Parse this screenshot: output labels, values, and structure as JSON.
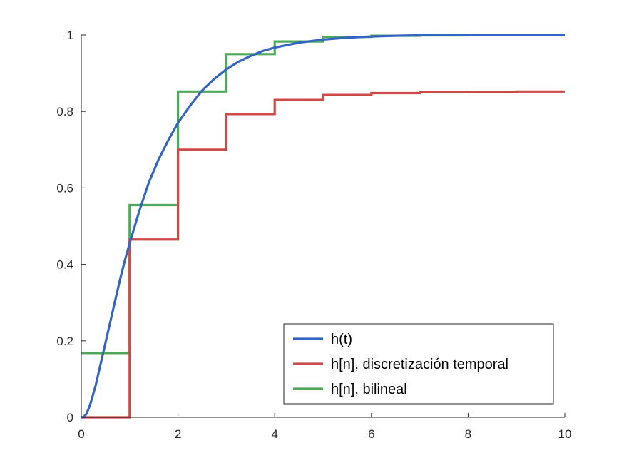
{
  "chart_data": {
    "type": "line",
    "title": "",
    "xlabel": "",
    "ylabel": "",
    "xlim": [
      0,
      10
    ],
    "ylim": [
      0,
      1
    ],
    "x_ticks": [
      0,
      2,
      4,
      6,
      8,
      10
    ],
    "y_ticks": [
      0,
      0.2,
      0.4,
      0.6,
      0.8,
      1
    ],
    "x_tick_labels": [
      "0",
      "2",
      "4",
      "6",
      "8",
      "10"
    ],
    "y_tick_labels": [
      "0",
      "0.2",
      "0.4",
      "0.6",
      "0.8",
      "1"
    ],
    "grid": false,
    "legend_position": "bottom-right",
    "series": [
      {
        "name": "h(t)",
        "style": "line",
        "color": "#3465c2",
        "x": [
          0,
          0.05,
          0.1,
          0.15,
          0.2,
          0.3,
          0.4,
          0.5,
          0.6,
          0.7,
          0.8,
          0.9,
          1.0,
          1.2,
          1.4,
          1.6,
          1.8,
          2.0,
          2.25,
          2.5,
          2.75,
          3.0,
          3.25,
          3.5,
          3.75,
          4.0,
          4.5,
          5.0,
          5.5,
          6.0,
          6.5,
          7.0,
          7.5,
          8.0,
          8.5,
          9.0,
          9.5,
          10.0
        ],
        "y": [
          0,
          0.001,
          0.008,
          0.022,
          0.04,
          0.085,
          0.14,
          0.195,
          0.25,
          0.305,
          0.36,
          0.41,
          0.455,
          0.54,
          0.615,
          0.675,
          0.725,
          0.77,
          0.815,
          0.855,
          0.885,
          0.91,
          0.93,
          0.945,
          0.958,
          0.967,
          0.98,
          0.988,
          0.993,
          0.996,
          0.998,
          0.999,
          0.9995,
          1.0,
          1.0,
          1.0,
          1.0,
          1.0
        ]
      },
      {
        "name": "h[n], discretización temporal",
        "style": "step",
        "color": "#cc4a48",
        "x": [
          0,
          1,
          2,
          3,
          4,
          5,
          6,
          7,
          8,
          9,
          10
        ],
        "y": [
          0,
          0.465,
          0.7,
          0.793,
          0.83,
          0.843,
          0.848,
          0.85,
          0.851,
          0.852,
          0.852
        ]
      },
      {
        "name": "h[n], bilineal",
        "style": "step",
        "color": "#4eaa5b",
        "x": [
          0,
          1,
          2,
          3,
          4,
          5,
          6,
          7,
          8,
          9,
          10
        ],
        "y": [
          0.168,
          0.555,
          0.852,
          0.95,
          0.983,
          0.995,
          0.998,
          0.999,
          1.0,
          1.0,
          1.0
        ]
      }
    ]
  }
}
